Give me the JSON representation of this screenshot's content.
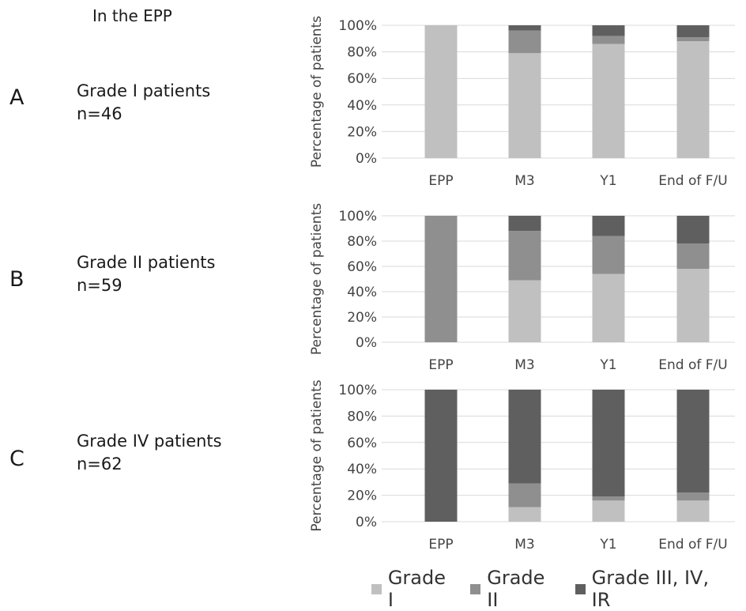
{
  "header": "In the EPP",
  "panels": [
    {
      "letter": "A",
      "group": "Grade I patients",
      "n": "n=46"
    },
    {
      "letter": "B",
      "group": "Grade II patients",
      "n": "n=59"
    },
    {
      "letter": "C",
      "group": "Grade IV patients",
      "n": "n=62"
    }
  ],
  "legend": [
    {
      "label": "Grade I",
      "color": "#c0c0c0"
    },
    {
      "label": "Grade II",
      "color": "#8f8f8f"
    },
    {
      "label": "Grade III, IV, IR",
      "color": "#5f5f5f"
    }
  ],
  "chart_data": [
    {
      "type": "bar",
      "stacked": true,
      "categories": [
        "EPP",
        "M3",
        "Y1",
        "End of F/U"
      ],
      "ylabel": "Percentage of patients",
      "ylim": [
        0,
        100
      ],
      "yticks": [
        "0%",
        "20%",
        "40%",
        "60%",
        "80%",
        "100%"
      ],
      "series": [
        {
          "name": "Grade I",
          "values": [
            100,
            79,
            86,
            88
          ]
        },
        {
          "name": "Grade II",
          "values": [
            0,
            17,
            6,
            3
          ]
        },
        {
          "name": "Grade III, IV, IR",
          "values": [
            0,
            4,
            8,
            9
          ]
        }
      ]
    },
    {
      "type": "bar",
      "stacked": true,
      "categories": [
        "EPP",
        "M3",
        "Y1",
        "End of F/U"
      ],
      "ylabel": "Percentage of patients",
      "ylim": [
        0,
        100
      ],
      "yticks": [
        "0%",
        "20%",
        "40%",
        "60%",
        "80%",
        "100%"
      ],
      "series": [
        {
          "name": "Grade I",
          "values": [
            0,
            49,
            54,
            58
          ]
        },
        {
          "name": "Grade II",
          "values": [
            100,
            39,
            30,
            20
          ]
        },
        {
          "name": "Grade III, IV, IR",
          "values": [
            0,
            12,
            16,
            22
          ]
        }
      ]
    },
    {
      "type": "bar",
      "stacked": true,
      "categories": [
        "EPP",
        "M3",
        "Y1",
        "End of F/U"
      ],
      "ylabel": "Percentage of patients",
      "ylim": [
        0,
        100
      ],
      "yticks": [
        "0%",
        "20%",
        "40%",
        "60%",
        "80%",
        "100%"
      ],
      "series": [
        {
          "name": "Grade I",
          "values": [
            0,
            11,
            16,
            16
          ]
        },
        {
          "name": "Grade II",
          "values": [
            0,
            18,
            3,
            6
          ]
        },
        {
          "name": "Grade III, IV, IR",
          "values": [
            100,
            71,
            81,
            78
          ]
        }
      ]
    }
  ]
}
